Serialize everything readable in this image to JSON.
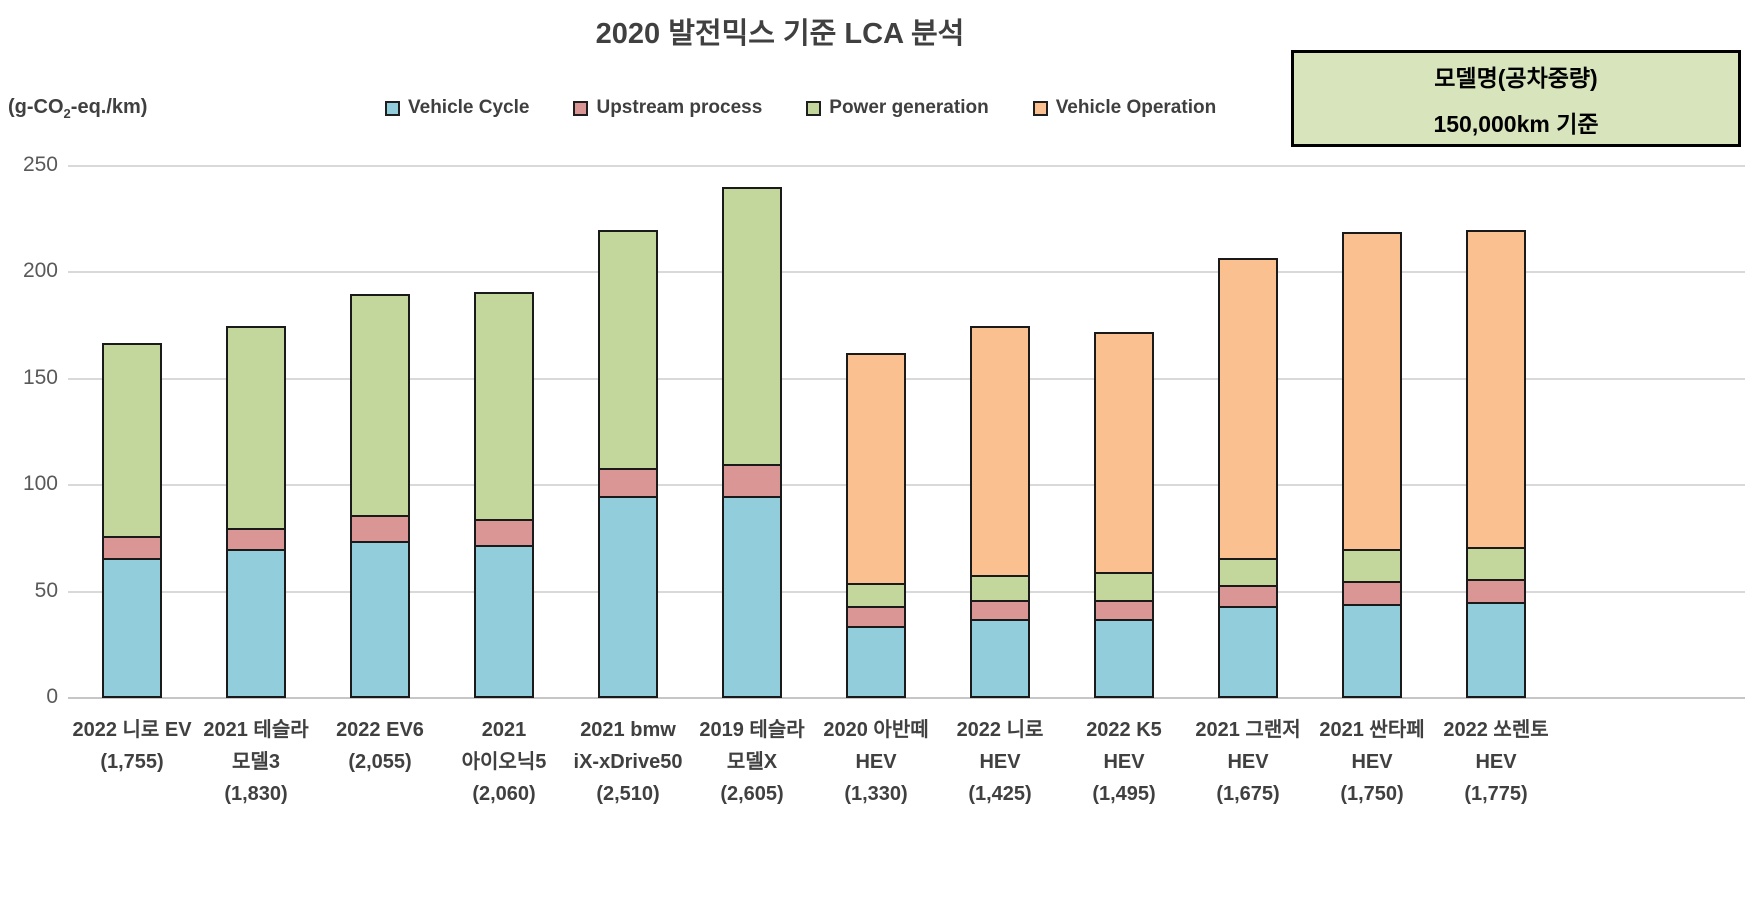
{
  "title": "2020 발전믹스 기준 LCA 분석",
  "y_axis": {
    "unit_prefix": "(g-CO",
    "unit_sub": "2",
    "unit_suffix": "-eq./km)"
  },
  "info_box": {
    "line1": "모델명(공차중량)",
    "line2": "150,000km 기준"
  },
  "colors": {
    "vehicle_cycle": "#92CDDC",
    "upstream_process": "#D99694",
    "power_generation": "#C3D69B",
    "vehicle_operation": "#FAC090",
    "info_box_fill": "#D7E4BC",
    "gridline": "#D9D9D9",
    "bar_border": "#1a1a1a",
    "text_dark": "#404040",
    "text_axis": "#595959"
  },
  "chart_data": {
    "type": "bar",
    "stacked": true,
    "title": "2020 발전믹스 기준 LCA 분석",
    "ylabel": "(g-CO2-eq./km)",
    "ylim": [
      0,
      250
    ],
    "yticks": [
      0,
      50,
      100,
      150,
      200,
      250
    ],
    "grid": true,
    "legend_position": "top",
    "categories": [
      {
        "lines": [
          "2022 니로 EV",
          "(1,755)"
        ]
      },
      {
        "lines": [
          "2021 테슬라",
          "모델3",
          "(1,830)"
        ]
      },
      {
        "lines": [
          "2022 EV6",
          "(2,055)"
        ]
      },
      {
        "lines": [
          "2021",
          "아이오닉5",
          "(2,060)"
        ]
      },
      {
        "lines": [
          "2021 bmw",
          "iX-xDrive50",
          "(2,510)"
        ]
      },
      {
        "lines": [
          "2019 테슬라",
          "모델X",
          "(2,605)"
        ]
      },
      {
        "lines": [
          "2020 아반떼",
          "HEV",
          "(1,330)"
        ]
      },
      {
        "lines": [
          "2022 니로",
          "HEV",
          "(1,425)"
        ]
      },
      {
        "lines": [
          "2022 K5",
          "HEV",
          "(1,495)"
        ]
      },
      {
        "lines": [
          "2021 그랜저",
          "HEV",
          "(1,675)"
        ]
      },
      {
        "lines": [
          "2021 싼타페",
          "HEV",
          "(1,750)"
        ]
      },
      {
        "lines": [
          "2022 쏘렌토",
          "HEV",
          "(1,775)"
        ]
      }
    ],
    "series": [
      {
        "name": "Vehicle Cycle",
        "color": "#92CDDC",
        "values": [
          66,
          70,
          74,
          72,
          95,
          95,
          34,
          37,
          37,
          43,
          44,
          45
        ]
      },
      {
        "name": "Upstream process",
        "color": "#D99694",
        "values": [
          10,
          10,
          12,
          12,
          13,
          15,
          9,
          9,
          9,
          10,
          11,
          11
        ]
      },
      {
        "name": "Power generation",
        "color": "#C3D69B",
        "values": [
          91,
          95,
          104,
          107,
          112,
          130,
          11,
          12,
          13,
          13,
          15,
          15
        ]
      },
      {
        "name": "Vehicle Operation",
        "color": "#FAC090",
        "values": [
          0,
          0,
          0,
          0,
          0,
          0,
          108,
          117,
          113,
          141,
          149,
          149
        ]
      }
    ],
    "totals": [
      167,
      175,
      190,
      191,
      220,
      240,
      162,
      175,
      172,
      207,
      219,
      220
    ]
  }
}
